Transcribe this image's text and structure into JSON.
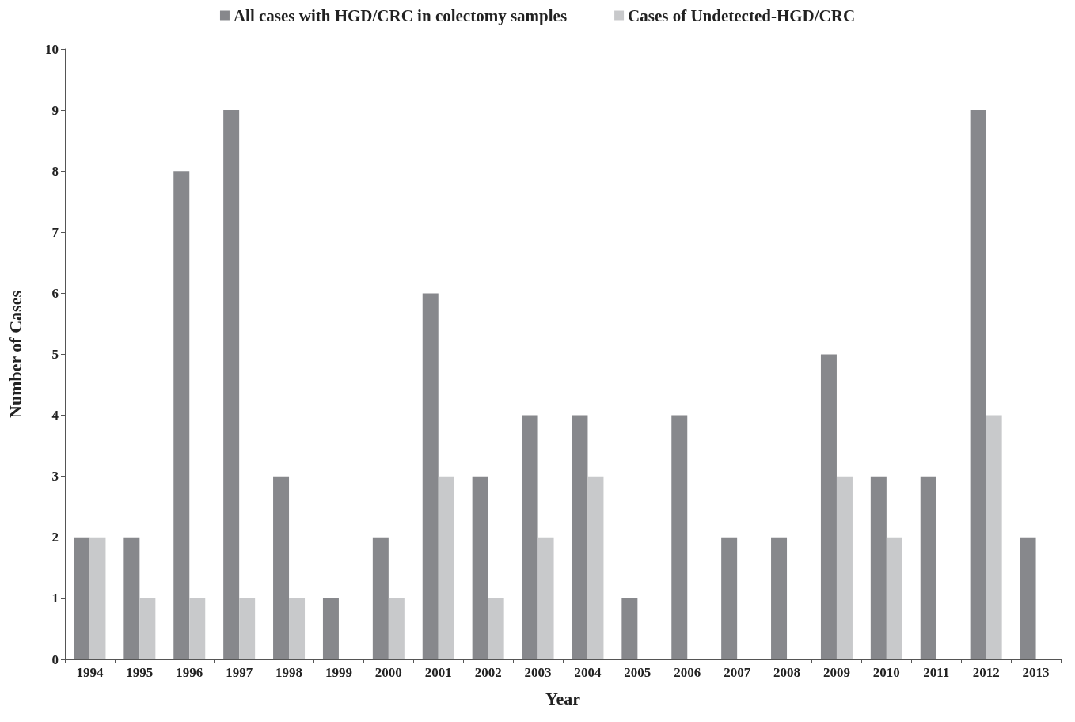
{
  "chart_data": {
    "type": "bar",
    "xlabel": "Year",
    "ylabel": "Number of Cases",
    "categories": [
      "1994",
      "1995",
      "1996",
      "1997",
      "1998",
      "1999",
      "2000",
      "2001",
      "2002",
      "2003",
      "2004",
      "2005",
      "2006",
      "2007",
      "2008",
      "2009",
      "2010",
      "2011",
      "2012",
      "2013"
    ],
    "series": [
      {
        "name": "All cases with HGD/CRC in colectomy samples",
        "color": "#87888c",
        "values": [
          2,
          2,
          8,
          9,
          3,
          1,
          2,
          6,
          3,
          4,
          4,
          1,
          4,
          2,
          2,
          5,
          3,
          3,
          9,
          2
        ]
      },
      {
        "name": "Cases of Undetected-HGD/CRC",
        "color": "#c8c9cb",
        "values": [
          2,
          1,
          1,
          1,
          1,
          0,
          1,
          3,
          1,
          2,
          3,
          0,
          0,
          0,
          0,
          3,
          2,
          0,
          4,
          0
        ]
      }
    ],
    "ylim": [
      0,
      10
    ],
    "yticks": [
      0,
      1,
      2,
      3,
      4,
      5,
      6,
      7,
      8,
      9,
      10
    ],
    "grid": false,
    "legend": "top"
  }
}
